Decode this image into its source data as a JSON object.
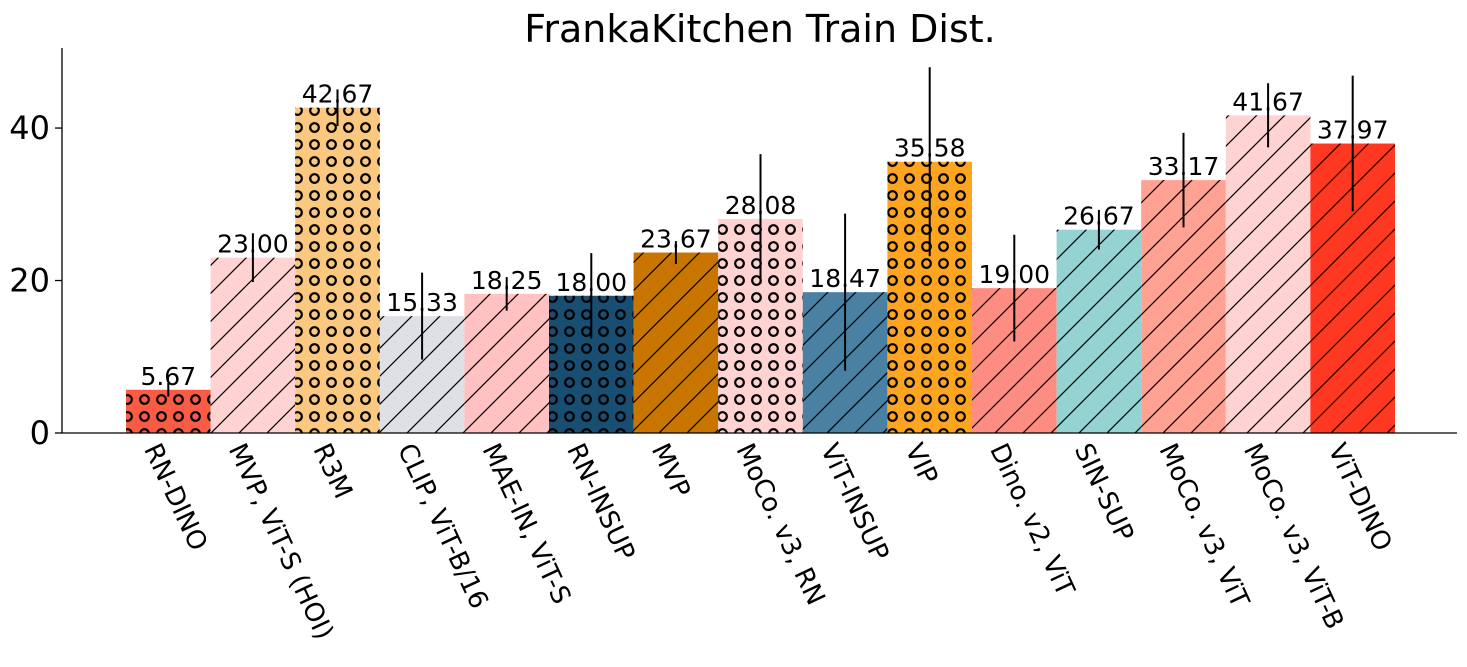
{
  "chart_data": {
    "type": "bar",
    "title": "FrankaKitchen Train Dist.",
    "xlabel": "",
    "ylabel": "",
    "ylim": [
      0,
      50.5
    ],
    "yticks": [
      0,
      20,
      40
    ],
    "categories": [
      "RN-DINO",
      "MVP, ViT-S (HOI)",
      "R3M",
      "CLIP, ViT-B/16",
      "MAE-IN, ViT-S",
      "RN-INSUP",
      "MVP",
      "MoCo. v3, RN",
      "ViT-INSUP",
      "VIP",
      "Dino. v2, ViT",
      "SIN-SUP",
      "MoCo. v3, ViT",
      "MoCo. v3, ViT-B",
      "ViT-DINO"
    ],
    "values": [
      5.67,
      23.0,
      42.67,
      15.33,
      18.25,
      18.0,
      23.67,
      28.08,
      18.47,
      35.58,
      19.0,
      26.67,
      33.17,
      41.67,
      37.97
    ],
    "value_labels": [
      "5.67",
      "23.00",
      "42.67",
      "15.33",
      "18.25",
      "18.00",
      "23.67",
      "28.08",
      "18.47",
      "35.58",
      "19.00",
      "26.67",
      "33.17",
      "41.67",
      "37.97"
    ],
    "errors": [
      0.9,
      3.2,
      2.4,
      5.7,
      2.2,
      5.6,
      1.5,
      8.5,
      10.3,
      12.4,
      7.0,
      2.6,
      6.2,
      4.2,
      8.9
    ],
    "colors": [
      "#FA5B45",
      "#FFD3D1",
      "#FBC87F",
      "#DFE0E5",
      "#FFC1C1",
      "#174E72",
      "#C97502",
      "#FFD3D1",
      "#4A80A2",
      "#FDA521",
      "#FD8D82",
      "#94D3D2",
      "#FFA293",
      "#FFD3D1",
      "#FF3921"
    ],
    "hatches": [
      "circles",
      "diagonal",
      "circles",
      "diagonal",
      "diagonal",
      "circles",
      "diagonal",
      "circles",
      "diagonal",
      "circles",
      "diagonal",
      "diagonal",
      "diagonal",
      "diagonal",
      "diagonal"
    ],
    "grid": false,
    "legend": "none"
  }
}
